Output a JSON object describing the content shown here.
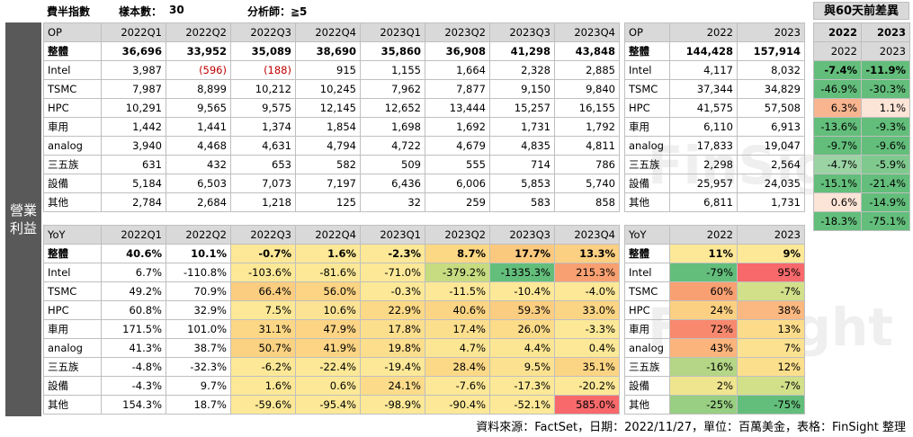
{
  "header": {
    "title": "費半指數",
    "sample_label": "樣本數：",
    "sample_value": "30",
    "analysts": "分析師：≧5",
    "diff_title": "與60天前差異"
  },
  "side_label": "營業利益",
  "op": {
    "columns": [
      "OP",
      "2022Q1",
      "2022Q2",
      "2022Q3",
      "2022Q4",
      "2023Q1",
      "2023Q2",
      "2023Q3",
      "2023Q4"
    ],
    "rows": [
      {
        "label": "整體",
        "values": [
          "36,696",
          "33,952",
          "35,089",
          "38,690",
          "35,860",
          "36,908",
          "41,298",
          "43,848"
        ]
      },
      {
        "label": "Intel",
        "values": [
          "3,987",
          "(596)",
          "(188)",
          "915",
          "1,155",
          "1,664",
          "2,328",
          "2,885"
        ]
      },
      {
        "label": "TSMC",
        "values": [
          "7,987",
          "8,899",
          "10,212",
          "10,245",
          "7,962",
          "7,877",
          "9,150",
          "9,840"
        ]
      },
      {
        "label": "HPC",
        "values": [
          "10,291",
          "9,565",
          "9,575",
          "12,145",
          "12,652",
          "13,444",
          "15,257",
          "16,155"
        ]
      },
      {
        "label": "車用",
        "values": [
          "1,442",
          "1,441",
          "1,374",
          "1,854",
          "1,698",
          "1,692",
          "1,731",
          "1,792"
        ]
      },
      {
        "label": "analog",
        "values": [
          "3,940",
          "4,468",
          "4,631",
          "4,794",
          "4,722",
          "4,679",
          "4,835",
          "4,811"
        ]
      },
      {
        "label": "三五族",
        "values": [
          "631",
          "432",
          "653",
          "582",
          "509",
          "555",
          "714",
          "786"
        ]
      },
      {
        "label": "設備",
        "values": [
          "5,184",
          "6,503",
          "7,073",
          "7,197",
          "6,436",
          "6,006",
          "5,853",
          "5,740"
        ]
      },
      {
        "label": "其他",
        "values": [
          "2,784",
          "2,684",
          "1,218",
          "125",
          "32",
          "259",
          "583",
          "858"
        ]
      }
    ]
  },
  "op_annual": {
    "columns": [
      "OP",
      "2022",
      "2023"
    ],
    "rows": [
      {
        "label": "整體",
        "values": [
          "144,428",
          "157,914"
        ]
      },
      {
        "label": "Intel",
        "values": [
          "4,117",
          "8,032"
        ]
      },
      {
        "label": "TSMC",
        "values": [
          "37,344",
          "34,829"
        ]
      },
      {
        "label": "HPC",
        "values": [
          "41,575",
          "57,508"
        ]
      },
      {
        "label": "車用",
        "values": [
          "6,110",
          "6,913"
        ]
      },
      {
        "label": "analog",
        "values": [
          "17,833",
          "19,047"
        ]
      },
      {
        "label": "三五族",
        "values": [
          "2,298",
          "2,564"
        ]
      },
      {
        "label": "設備",
        "values": [
          "25,957",
          "24,035"
        ]
      },
      {
        "label": "其他",
        "values": [
          "6,811",
          "1,731"
        ]
      }
    ]
  },
  "diff": {
    "columns": [
      "2022",
      "2023"
    ],
    "rows": [
      {
        "values": [
          "-7.4%",
          "-11.9%"
        ],
        "colors": [
          "#63be7b",
          "#63be7b"
        ]
      },
      {
        "values": [
          "-46.9%",
          "-30.3%"
        ],
        "colors": [
          "#63be7b",
          "#63be7b"
        ]
      },
      {
        "values": [
          "6.3%",
          "1.1%"
        ],
        "colors": [
          "#f8b590",
          "#fce4d6"
        ]
      },
      {
        "values": [
          "-13.6%",
          "-9.3%"
        ],
        "colors": [
          "#63be7b",
          "#63be7b"
        ]
      },
      {
        "values": [
          "-9.7%",
          "-9.6%"
        ],
        "colors": [
          "#63be7b",
          "#63be7b"
        ]
      },
      {
        "values": [
          "-4.7%",
          "-5.9%"
        ],
        "colors": [
          "#9bd3a4",
          "#7fc98f"
        ]
      },
      {
        "values": [
          "-15.1%",
          "-21.4%"
        ],
        "colors": [
          "#63be7b",
          "#63be7b"
        ]
      },
      {
        "values": [
          "0.6%",
          "-14.9%"
        ],
        "colors": [
          "#fce4d6",
          "#63be7b"
        ]
      },
      {
        "values": [
          "-18.3%",
          "-75.1%"
        ],
        "colors": [
          "#63be7b",
          "#63be7b"
        ]
      }
    ]
  },
  "yoy": {
    "columns": [
      "YoY",
      "2022Q1",
      "2022Q2",
      "2022Q3",
      "2022Q4",
      "2023Q1",
      "2023Q2",
      "2023Q3",
      "2023Q4"
    ],
    "rows": [
      {
        "label": "整體",
        "values": [
          "40.6%",
          "10.1%",
          "-0.7%",
          "1.6%",
          "-2.3%",
          "8.7%",
          "17.7%",
          "13.3%"
        ],
        "colors": [
          "#ffffff",
          "#ffffff",
          "#fce897",
          "#fce897",
          "#fce897",
          "#fcd884",
          "#fbc97e",
          "#fcd082"
        ]
      },
      {
        "label": "Intel",
        "values": [
          "6.7%",
          "-110.8%",
          "-103.6%",
          "-81.6%",
          "-71.0%",
          "-379.2%",
          "-1335.3%",
          "215.3%"
        ],
        "colors": [
          "#ffffff",
          "#ffffff",
          "#fce897",
          "#fce897",
          "#fce897",
          "#c7dc81",
          "#63be7b",
          "#f8a072"
        ]
      },
      {
        "label": "TSMC",
        "values": [
          "49.2%",
          "70.9%",
          "66.4%",
          "56.0%",
          "-0.3%",
          "-11.5%",
          "-10.4%",
          "-4.0%"
        ],
        "colors": [
          "#ffffff",
          "#ffffff",
          "#fbcd80",
          "#fcd483",
          "#fce897",
          "#fce897",
          "#fce897",
          "#fce897"
        ]
      },
      {
        "label": "HPC",
        "values": [
          "60.8%",
          "32.9%",
          "7.5%",
          "10.6%",
          "22.9%",
          "40.6%",
          "59.3%",
          "33.0%"
        ],
        "colors": [
          "#ffffff",
          "#ffffff",
          "#fce897",
          "#fce394",
          "#fcd986",
          "#fcd584",
          "#fbcd80",
          "#fcd584"
        ]
      },
      {
        "label": "車用",
        "values": [
          "171.5%",
          "101.0%",
          "31.1%",
          "47.9%",
          "17.8%",
          "17.4%",
          "26.0%",
          "-3.3%"
        ],
        "colors": [
          "#ffffff",
          "#ffffff",
          "#fcd786",
          "#fcd484",
          "#fcdf8d",
          "#fcdf8d",
          "#fcdb89",
          "#fce897"
        ]
      },
      {
        "label": "analog",
        "values": [
          "41.3%",
          "38.7%",
          "50.7%",
          "41.9%",
          "19.8%",
          "4.7%",
          "4.4%",
          "0.4%"
        ],
        "colors": [
          "#ffffff",
          "#ffffff",
          "#fbd182",
          "#fcd484",
          "#fcde8c",
          "#fce693",
          "#fce693",
          "#fce897"
        ]
      },
      {
        "label": "三五族",
        "values": [
          "-4.8%",
          "-32.3%",
          "-6.2%",
          "-22.4%",
          "-19.4%",
          "28.4%",
          "9.5%",
          "35.1%"
        ],
        "colors": [
          "#ffffff",
          "#ffffff",
          "#fce897",
          "#fce897",
          "#fce897",
          "#fcd986",
          "#fce290",
          "#fcd584"
        ]
      },
      {
        "label": "設備",
        "values": [
          "-4.3%",
          "9.7%",
          "1.6%",
          "0.6%",
          "24.1%",
          "-7.6%",
          "-17.3%",
          "-20.2%"
        ],
        "colors": [
          "#ffffff",
          "#ffffff",
          "#fce897",
          "#fce897",
          "#fcdc8a",
          "#fce897",
          "#fce897",
          "#fce897"
        ]
      },
      {
        "label": "其他",
        "values": [
          "154.3%",
          "18.7%",
          "-59.6%",
          "-95.4%",
          "-98.9%",
          "-90.4%",
          "-52.1%",
          "585.0%"
        ],
        "colors": [
          "#ffffff",
          "#ffffff",
          "#fce897",
          "#fce897",
          "#fce897",
          "#fce897",
          "#fce897",
          "#f8696b"
        ]
      }
    ]
  },
  "yoy_annual": {
    "columns": [
      "YoY",
      "2022",
      "2023"
    ],
    "rows": [
      {
        "label": "整體",
        "values": [
          "11%",
          "9%"
        ],
        "colors": [
          "#fce897",
          "#fce897"
        ]
      },
      {
        "label": "Intel",
        "values": [
          "-79%",
          "95%"
        ],
        "colors": [
          "#63be7b",
          "#f8696b"
        ]
      },
      {
        "label": "TSMC",
        "values": [
          "60%",
          "-7%"
        ],
        "colors": [
          "#f8a072",
          "#d3e08a"
        ]
      },
      {
        "label": "HPC",
        "values": [
          "24%",
          "38%"
        ],
        "colors": [
          "#fcd082",
          "#fbb880"
        ]
      },
      {
        "label": "車用",
        "values": [
          "72%",
          "13%"
        ],
        "colors": [
          "#f8896e",
          "#fcdc8a"
        ]
      },
      {
        "label": "analog",
        "values": [
          "43%",
          "7%"
        ],
        "colors": [
          "#fbb47c",
          "#fce290"
        ]
      },
      {
        "label": "三五族",
        "values": [
          "-16%",
          "12%"
        ],
        "colors": [
          "#b4d686",
          "#fcdf8d"
        ]
      },
      {
        "label": "設備",
        "values": [
          "2%",
          "-7%"
        ],
        "colors": [
          "#f0e58f",
          "#d3e08a"
        ]
      },
      {
        "label": "其他",
        "values": [
          "-25%",
          "-75%"
        ],
        "colors": [
          "#98cf82",
          "#63be7b"
        ]
      }
    ]
  },
  "watermarks": [
    "FinSight",
    "FinSight"
  ],
  "source": "資料來源：FactSet，日期：2022/11/27，單位：百萬美金，表格：FinSight 整理"
}
